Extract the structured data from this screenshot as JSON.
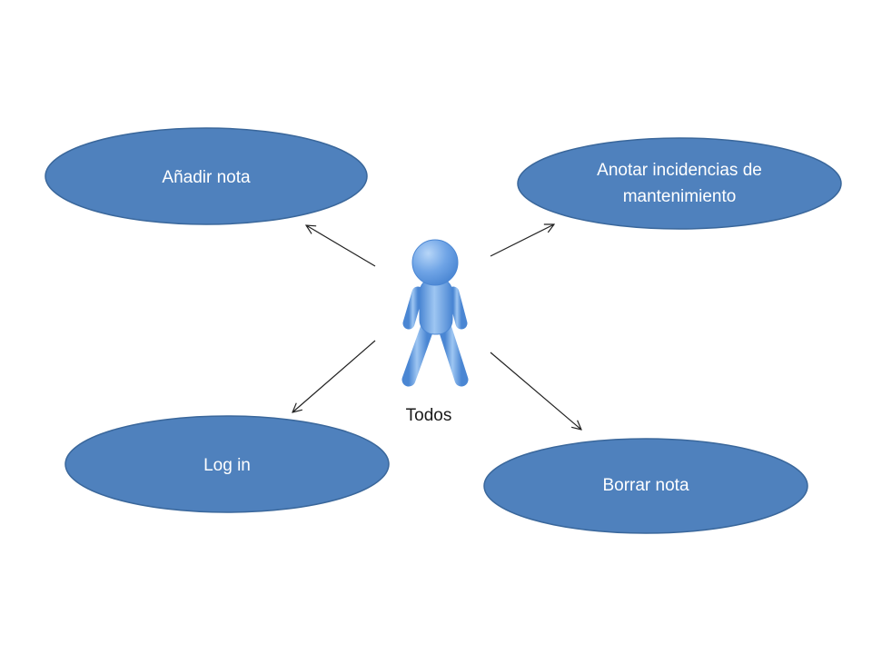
{
  "diagram": {
    "actor": {
      "label": "Todos",
      "icon": "stick-figure-icon"
    },
    "use_cases": [
      {
        "id": "anadir-nota",
        "lines": [
          "Añadir nota"
        ]
      },
      {
        "id": "anotar-incidencias",
        "lines": [
          "Anotar incidencias de",
          "mantenimiento"
        ]
      },
      {
        "id": "log-in",
        "lines": [
          "Log in"
        ]
      },
      {
        "id": "borrar-nota",
        "lines": [
          "Borrar nota"
        ]
      }
    ],
    "colors": {
      "use_case_fill": "#4f81bd",
      "use_case_stroke": "#3a679b",
      "use_case_text": "#ffffff",
      "actor_body": "#6fa4e6",
      "actor_highlight": "#a9cdf5",
      "actor_stroke": "#3f7fcf",
      "arrow": "#222222"
    }
  }
}
